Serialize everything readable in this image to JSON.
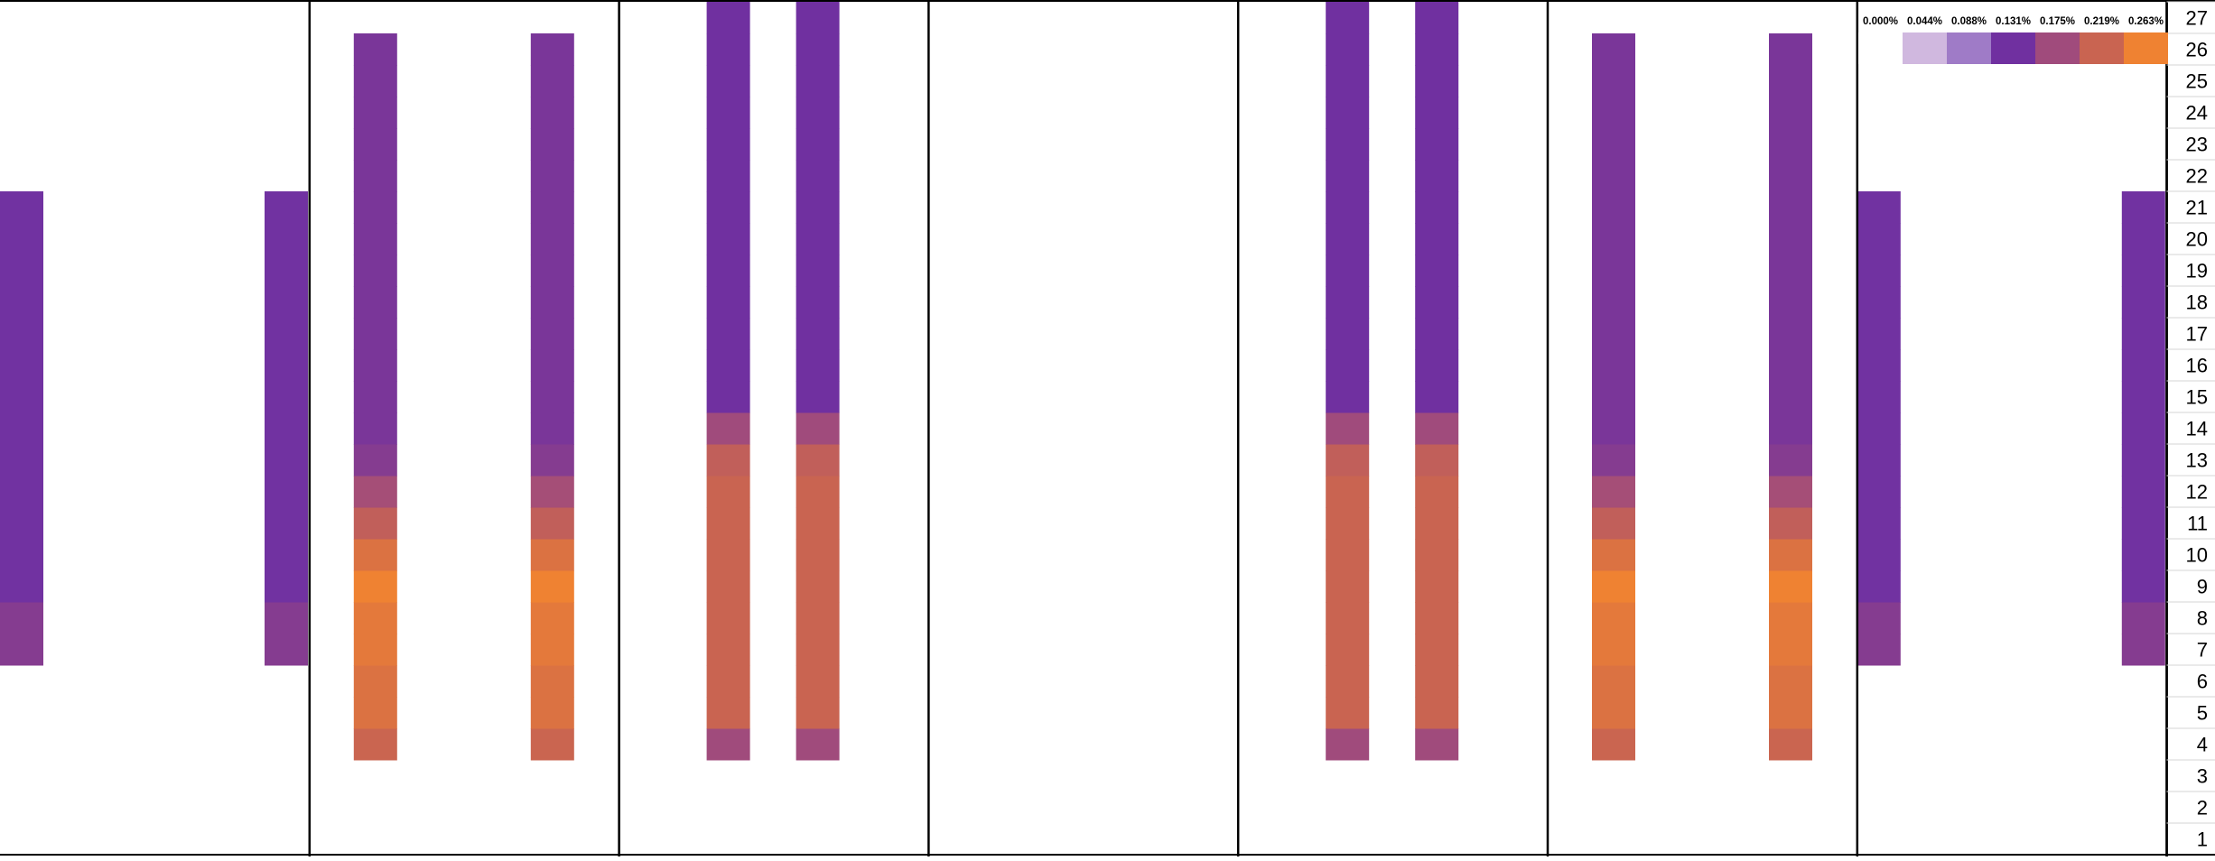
{
  "chart_data": {
    "type": "heatmap",
    "title": "",
    "xlabel": "",
    "ylabel": "",
    "row_labels": [
      "1",
      "2",
      "3",
      "4",
      "5",
      "6",
      "7",
      "8",
      "9",
      "10",
      "11",
      "12",
      "13",
      "14",
      "15",
      "16",
      "17",
      "18",
      "19",
      "20",
      "21",
      "22",
      "23",
      "24",
      "25",
      "26",
      "27"
    ],
    "legend": {
      "labels": [
        "0.000%",
        "0.044%",
        "0.088%",
        "0.131%",
        "0.175%",
        "0.219%",
        "0.263%"
      ],
      "colors": [
        "#ffffff",
        "#d0b8df",
        "#9f7bc7",
        "#7030a0",
        "#a04b7c",
        "#c96451",
        "#ef8232"
      ],
      "placement": "top-right"
    },
    "scale": {
      "min": 0.0,
      "max": 0.263,
      "unit": "%"
    },
    "panels": [
      {
        "columns": [
          {
            "rows": [
              7,
              8,
              9,
              10,
              11,
              12,
              13,
              14,
              15,
              16,
              17,
              18,
              19,
              20,
              21
            ],
            "values": [
              0.15,
              0.15,
              0.13,
              0.13,
              0.13,
              0.13,
              0.13,
              0.13,
              0.13,
              0.13,
              0.13,
              0.13,
              0.13,
              0.13,
              0.13
            ]
          },
          {
            "rows": [
              7,
              8,
              9,
              10,
              11,
              12,
              13,
              14,
              15,
              16,
              17,
              18,
              19,
              20,
              21
            ],
            "values": [
              0.15,
              0.15,
              0.13,
              0.13,
              0.13,
              0.13,
              0.13,
              0.13,
              0.13,
              0.13,
              0.13,
              0.13,
              0.13,
              0.13,
              0.13
            ]
          }
        ]
      },
      {
        "columns": [
          {
            "rows": [
              4,
              5,
              6,
              7,
              8,
              9,
              10,
              11,
              12,
              13,
              14,
              15,
              16,
              17,
              18,
              19,
              20,
              21,
              22,
              23,
              24,
              25,
              26
            ],
            "values": [
              0.22,
              0.24,
              0.24,
              0.25,
              0.25,
              0.263,
              0.24,
              0.21,
              0.18,
              0.15,
              0.14,
              0.14,
              0.14,
              0.14,
              0.14,
              0.14,
              0.14,
              0.14,
              0.14,
              0.14,
              0.14,
              0.14,
              0.14
            ]
          },
          {
            "rows": [
              4,
              5,
              6,
              7,
              8,
              9,
              10,
              11,
              12,
              13,
              14,
              15,
              16,
              17,
              18,
              19,
              20,
              21,
              22,
              23,
              24,
              25,
              26
            ],
            "values": [
              0.22,
              0.24,
              0.24,
              0.25,
              0.25,
              0.263,
              0.24,
              0.21,
              0.18,
              0.15,
              0.14,
              0.14,
              0.14,
              0.14,
              0.14,
              0.14,
              0.14,
              0.14,
              0.14,
              0.14,
              0.14,
              0.14,
              0.14
            ]
          }
        ]
      },
      {
        "columns": [
          {
            "rows": [
              4,
              5,
              6,
              7,
              8,
              9,
              10,
              11,
              12,
              13,
              14,
              15,
              16,
              17,
              18,
              19,
              20,
              21,
              22,
              23,
              24,
              25,
              26,
              27
            ],
            "values": [
              0.175,
              0.219,
              0.219,
              0.219,
              0.219,
              0.219,
              0.219,
              0.219,
              0.219,
              0.21,
              0.175,
              0.131,
              0.131,
              0.131,
              0.131,
              0.131,
              0.131,
              0.131,
              0.131,
              0.131,
              0.131,
              0.131,
              0.131,
              0.131
            ]
          },
          {
            "rows": [
              4,
              5,
              6,
              7,
              8,
              9,
              10,
              11,
              12,
              13,
              14,
              15,
              16,
              17,
              18,
              19,
              20,
              21,
              22,
              23,
              24,
              25,
              26,
              27
            ],
            "values": [
              0.175,
              0.219,
              0.219,
              0.219,
              0.219,
              0.219,
              0.219,
              0.219,
              0.219,
              0.21,
              0.175,
              0.131,
              0.131,
              0.131,
              0.131,
              0.131,
              0.131,
              0.131,
              0.131,
              0.131,
              0.131,
              0.131,
              0.131,
              0.131
            ]
          }
        ]
      },
      {
        "columns": []
      },
      {
        "columns": [
          {
            "rows": [
              4,
              5,
              6,
              7,
              8,
              9,
              10,
              11,
              12,
              13,
              14,
              15,
              16,
              17,
              18,
              19,
              20,
              21,
              22,
              23,
              24,
              25,
              26,
              27
            ],
            "values": [
              0.175,
              0.219,
              0.219,
              0.219,
              0.219,
              0.219,
              0.219,
              0.219,
              0.219,
              0.21,
              0.175,
              0.131,
              0.131,
              0.131,
              0.131,
              0.131,
              0.131,
              0.131,
              0.131,
              0.131,
              0.131,
              0.131,
              0.131,
              0.131
            ]
          },
          {
            "rows": [
              4,
              5,
              6,
              7,
              8,
              9,
              10,
              11,
              12,
              13,
              14,
              15,
              16,
              17,
              18,
              19,
              20,
              21,
              22,
              23,
              24,
              25,
              26,
              27
            ],
            "values": [
              0.175,
              0.219,
              0.219,
              0.219,
              0.219,
              0.219,
              0.219,
              0.219,
              0.219,
              0.21,
              0.175,
              0.131,
              0.131,
              0.131,
              0.131,
              0.131,
              0.131,
              0.131,
              0.131,
              0.131,
              0.131,
              0.131,
              0.131,
              0.131
            ]
          }
        ]
      },
      {
        "columns": [
          {
            "rows": [
              4,
              5,
              6,
              7,
              8,
              9,
              10,
              11,
              12,
              13,
              14,
              15,
              16,
              17,
              18,
              19,
              20,
              21,
              22,
              23,
              24,
              25,
              26
            ],
            "values": [
              0.22,
              0.24,
              0.24,
              0.25,
              0.25,
              0.263,
              0.24,
              0.21,
              0.18,
              0.15,
              0.14,
              0.14,
              0.14,
              0.14,
              0.14,
              0.14,
              0.14,
              0.14,
              0.14,
              0.14,
              0.14,
              0.14,
              0.14
            ]
          },
          {
            "rows": [
              4,
              5,
              6,
              7,
              8,
              9,
              10,
              11,
              12,
              13,
              14,
              15,
              16,
              17,
              18,
              19,
              20,
              21,
              22,
              23,
              24,
              25,
              26
            ],
            "values": [
              0.22,
              0.24,
              0.24,
              0.25,
              0.25,
              0.263,
              0.24,
              0.21,
              0.18,
              0.15,
              0.14,
              0.14,
              0.14,
              0.14,
              0.14,
              0.14,
              0.14,
              0.14,
              0.14,
              0.14,
              0.14,
              0.14,
              0.14
            ]
          }
        ]
      },
      {
        "columns": [
          {
            "rows": [
              7,
              8,
              9,
              10,
              11,
              12,
              13,
              14,
              15,
              16,
              17,
              18,
              19,
              20,
              21
            ],
            "values": [
              0.15,
              0.15,
              0.13,
              0.13,
              0.13,
              0.13,
              0.13,
              0.13,
              0.13,
              0.13,
              0.13,
              0.13,
              0.13,
              0.13,
              0.13
            ]
          },
          {
            "rows": [
              7,
              8,
              9,
              10,
              11,
              12,
              13,
              14,
              15,
              16,
              17,
              18,
              19,
              20,
              21
            ],
            "values": [
              0.15,
              0.15,
              0.13,
              0.13,
              0.13,
              0.13,
              0.13,
              0.13,
              0.13,
              0.13,
              0.13,
              0.13,
              0.13,
              0.13,
              0.13
            ]
          }
        ]
      }
    ]
  }
}
